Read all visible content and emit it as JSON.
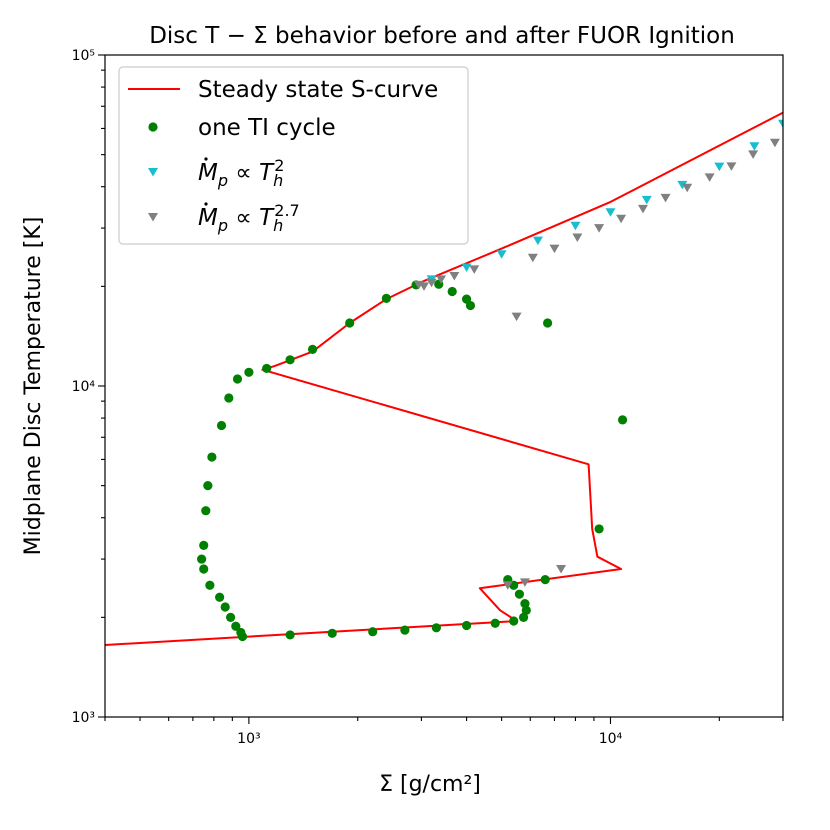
{
  "chart_data": {
    "type": "scatter",
    "title": "Disc T − Σ behavior before and after FUOR Ignition",
    "xlabel": "Σ [g/cm²]",
    "ylabel": "Midplane Disc Temperature [K]",
    "xscale": "log",
    "yscale": "log",
    "xlim": [
      400,
      30000
    ],
    "ylim": [
      1000,
      100000
    ],
    "x_ticks": [
      {
        "value": 1000,
        "label": "10³"
      },
      {
        "value": 10000,
        "label": "10⁴"
      }
    ],
    "y_ticks": [
      {
        "value": 1000,
        "label": "10³"
      },
      {
        "value": 10000,
        "label": "10⁴"
      },
      {
        "value": 100000,
        "label": "10⁵"
      }
    ],
    "legend": {
      "location": "upper left",
      "entries": [
        {
          "label": "Steady state S-curve",
          "marker": "line",
          "color": "#ff0000"
        },
        {
          "label": "one TI cycle",
          "marker": "circle",
          "color": "#008000"
        },
        {
          "label": "Ṁp ∝ T_h^2",
          "marker": "triangle-down",
          "color": "#17becf",
          "math": {
            "base": "p",
            "prop": "T",
            "sub": "h",
            "sup": "2"
          }
        },
        {
          "label": "Ṁp ∝ T_h^2.7",
          "marker": "triangle-down",
          "color": "#808080",
          "math": {
            "base": "p",
            "prop": "T",
            "sub": "h",
            "sup": "2.7"
          }
        }
      ]
    },
    "series": [
      {
        "name": "Steady state S-curve",
        "kind": "line",
        "color": "#ff0000",
        "points": [
          [
            400,
            1650
          ],
          [
            1000,
            1750
          ],
          [
            5500,
            1950
          ],
          [
            4950,
            2100
          ],
          [
            4350,
            2450
          ],
          [
            10700,
            2800
          ],
          [
            9200,
            3050
          ],
          [
            8900,
            3700
          ],
          [
            8700,
            5800
          ],
          [
            1090,
            11200
          ],
          [
            1180,
            11500
          ],
          [
            1500,
            12700
          ],
          [
            1900,
            15500
          ],
          [
            2400,
            18300
          ],
          [
            3000,
            20600
          ],
          [
            5000,
            26000
          ],
          [
            10000,
            36000
          ],
          [
            30000,
            67000
          ]
        ]
      },
      {
        "name": "one TI cycle",
        "kind": "scatter",
        "color": "#008000",
        "points": [
          [
            960,
            1750
          ],
          [
            1300,
            1770
          ],
          [
            1700,
            1790
          ],
          [
            2200,
            1810
          ],
          [
            2700,
            1830
          ],
          [
            3300,
            1860
          ],
          [
            4000,
            1890
          ],
          [
            4800,
            1920
          ],
          [
            5400,
            1950
          ],
          [
            5750,
            2000
          ],
          [
            5850,
            2100
          ],
          [
            5800,
            2200
          ],
          [
            5600,
            2350
          ],
          [
            5400,
            2500
          ],
          [
            5200,
            2600
          ],
          [
            6600,
            2600
          ],
          [
            9300,
            3700
          ],
          [
            10800,
            7900
          ],
          [
            6700,
            15500
          ],
          [
            4100,
            17500
          ],
          [
            4000,
            18300
          ],
          [
            3650,
            19300
          ],
          [
            3350,
            20300
          ],
          [
            2900,
            20200
          ],
          [
            2400,
            18400
          ],
          [
            1900,
            15500
          ],
          [
            1500,
            12900
          ],
          [
            1300,
            12000
          ],
          [
            1120,
            11300
          ],
          [
            1000,
            11000
          ],
          [
            930,
            10500
          ],
          [
            880,
            9200
          ],
          [
            840,
            7600
          ],
          [
            790,
            6100
          ],
          [
            770,
            5000
          ],
          [
            760,
            4200
          ],
          [
            750,
            3300
          ],
          [
            740,
            3000
          ],
          [
            750,
            2800
          ],
          [
            780,
            2500
          ],
          [
            830,
            2300
          ],
          [
            860,
            2150
          ],
          [
            890,
            2000
          ],
          [
            920,
            1880
          ],
          [
            950,
            1800
          ]
        ]
      },
      {
        "name": "Ṁp ∝ T_h^2",
        "kind": "scatter",
        "color": "#17becf",
        "points": [
          [
            3200,
            21000
          ],
          [
            4000,
            22800
          ],
          [
            5000,
            25000
          ],
          [
            6300,
            27500
          ],
          [
            8000,
            30500
          ],
          [
            10000,
            33500
          ],
          [
            12600,
            36500
          ],
          [
            15800,
            40500
          ],
          [
            20000,
            46000
          ],
          [
            25000,
            53000
          ],
          [
            30000,
            62000
          ]
        ]
      },
      {
        "name": "Ṁp ∝ T_h^2.7",
        "kind": "scatter",
        "color": "#808080",
        "points": [
          [
            2950,
            20200
          ],
          [
            3050,
            20000
          ],
          [
            3200,
            20500
          ],
          [
            3400,
            21000
          ],
          [
            3700,
            21500
          ],
          [
            4200,
            22500
          ],
          [
            5500,
            16200
          ],
          [
            7300,
            2800
          ],
          [
            5200,
            2500
          ],
          [
            5800,
            2550
          ],
          [
            6100,
            24400
          ],
          [
            7000,
            26000
          ],
          [
            8100,
            28100
          ],
          [
            9300,
            30000
          ],
          [
            10700,
            32000
          ],
          [
            12300,
            34300
          ],
          [
            14200,
            37000
          ],
          [
            16300,
            39700
          ],
          [
            18800,
            42700
          ],
          [
            21600,
            46100
          ],
          [
            24800,
            50100
          ],
          [
            28500,
            54300
          ]
        ]
      }
    ]
  }
}
